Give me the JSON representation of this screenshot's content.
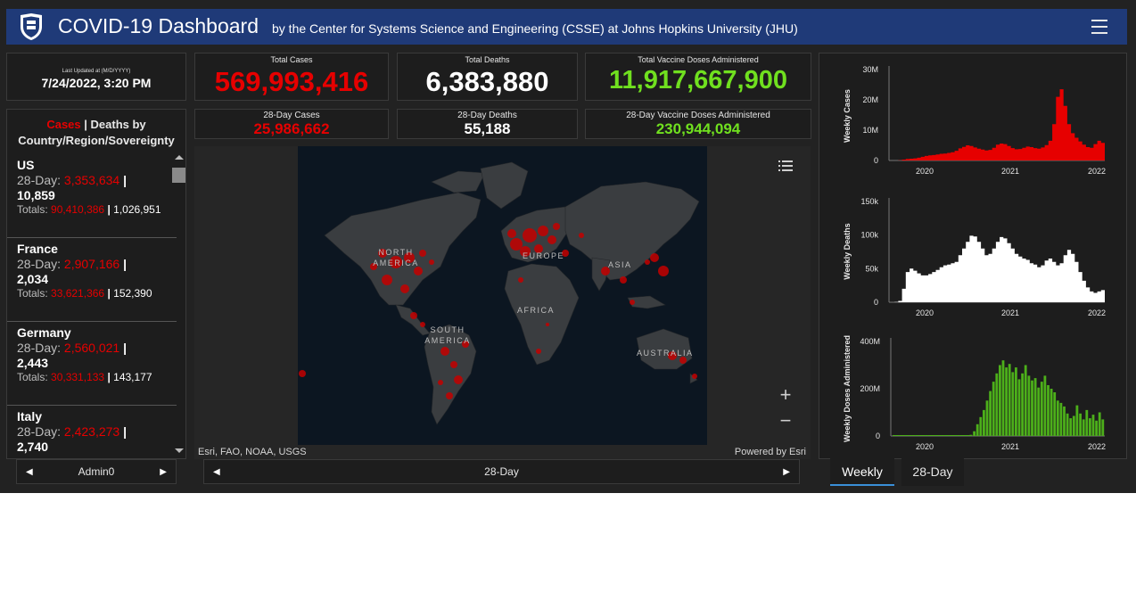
{
  "header": {
    "title": "COVID-19 Dashboard",
    "subtitle": "by the Center for Systems Science and Engineering (CSSE) at Johns Hopkins University (JHU)",
    "logo_icon": "jhu-shield-icon",
    "menu_icon": "hamburger-menu-icon"
  },
  "last_updated": {
    "label": "Last Updated at (M/D/YYYY)",
    "value": "7/24/2022, 3:20 PM"
  },
  "totals": {
    "cases_label": "Total Cases",
    "cases_value": "569,993,416",
    "deaths_label": "Total Deaths",
    "deaths_value": "6,383,880",
    "vaccine_label": "Total Vaccine Doses Administered",
    "vaccine_value": "11,917,667,900"
  },
  "day28": {
    "cases_label": "28-Day Cases",
    "cases_value": "25,986,662",
    "deaths_label": "28-Day Deaths",
    "deaths_value": "55,188",
    "vaccine_label": "28-Day Vaccine Doses Administered",
    "vaccine_value": "230,944,094"
  },
  "country_list": {
    "title_cases": "Cases",
    "title_sep": " | ",
    "title_rest": "Deaths by",
    "title_line2": "Country/Region/Sovereignty",
    "items": [
      {
        "name": "US",
        "d28_label": "28-Day:",
        "d28_cases": "3,353,634",
        "d28_deaths": "10,859",
        "tot_label": "Totals:",
        "tot_cases": "90,410,386",
        "tot_deaths": "1,026,951"
      },
      {
        "name": "France",
        "d28_label": "28-Day:",
        "d28_cases": "2,907,166",
        "d28_deaths": "2,034",
        "tot_label": "Totals:",
        "tot_cases": "33,621,366",
        "tot_deaths": "152,390"
      },
      {
        "name": "Germany",
        "d28_label": "28-Day:",
        "d28_cases": "2,560,021",
        "d28_deaths": "2,443",
        "tot_label": "Totals:",
        "tot_cases": "30,331,133",
        "tot_deaths": "143,177"
      },
      {
        "name": "Italy",
        "d28_label": "28-Day:",
        "d28_cases": "2,423,273",
        "d28_deaths": "2,740",
        "tot_label": "",
        "tot_cases": "",
        "tot_deaths": ""
      }
    ]
  },
  "map": {
    "labels": [
      "NORTH AMERICA",
      "EUROPE",
      "ASIA",
      "AFRICA",
      "SOUTH AMERICA",
      "AUSTRALIA"
    ],
    "attribution": "Esri, FAO, NOAA, USGS",
    "powered": "Powered by Esri",
    "legend_icon": "legend-list-icon",
    "zoom_in": "+",
    "zoom_out": "−"
  },
  "pagers": {
    "left_label": "Admin0",
    "center_label": "28-Day"
  },
  "tabs": {
    "weekly": "Weekly",
    "day28": "28-Day"
  },
  "chart_data": [
    {
      "type": "area",
      "ylabel": "Weekly Cases",
      "yticks": [
        "0",
        "10M",
        "20M",
        "30M"
      ],
      "ylim": [
        0,
        30000000
      ],
      "xticks": [
        "2020",
        "2021",
        "2022"
      ],
      "color": "#e60000",
      "series": [
        {
          "values": [
            0,
            0.01,
            0.05,
            0.3,
            0.5,
            0.6,
            0.7,
            0.9,
            1.2,
            1.5,
            1.7,
            1.8,
            2.0,
            2.2,
            2.3,
            2.5,
            2.7,
            3.2,
            4.0,
            4.5,
            5.0,
            4.8,
            4.3,
            3.9,
            3.6,
            3.3,
            3.5,
            4.2,
            5.2,
            5.6,
            5.4,
            4.8,
            4.1,
            3.7,
            3.8,
            4.2,
            4.6,
            4.4,
            4.1,
            3.9,
            4.3,
            5.1,
            6.5,
            12,
            21,
            23.5,
            18,
            12,
            9,
            7.5,
            6.3,
            5.2,
            4.4,
            4.2,
            5.4,
            6.5,
            5.8
          ]
        }
      ]
    },
    {
      "type": "area",
      "ylabel": "Weekly Deaths",
      "yticks": [
        "0",
        "50k",
        "100k",
        "150k"
      ],
      "ylim": [
        0,
        150000
      ],
      "xticks": [
        "2020",
        "2021",
        "2022"
      ],
      "color": "#ffffff",
      "series": [
        {
          "values": [
            0,
            200,
            2000,
            20000,
            45000,
            50000,
            47000,
            43000,
            40000,
            40000,
            42000,
            45000,
            48000,
            52000,
            55000,
            56000,
            58000,
            60000,
            70000,
            80000,
            90000,
            99000,
            98000,
            90000,
            80000,
            70000,
            72000,
            80000,
            90000,
            97000,
            95000,
            88000,
            80000,
            72000,
            68000,
            65000,
            63000,
            58000,
            56000,
            52000,
            55000,
            62000,
            65000,
            60000,
            55000,
            58000,
            70000,
            78000,
            72000,
            60000,
            45000,
            32000,
            22000,
            16000,
            14000,
            16000,
            18000
          ]
        }
      ]
    },
    {
      "type": "bar",
      "ylabel": "Weekly Doses Administered",
      "yticks": [
        "0",
        "200M",
        "400M"
      ],
      "ylim": [
        0,
        400000000
      ],
      "xticks": [
        "2020",
        "2021",
        "2022"
      ],
      "color": "#4caf1a",
      "series": [
        {
          "values": [
            0,
            0,
            0,
            0,
            0,
            0,
            0,
            0,
            0,
            0,
            0,
            0,
            0,
            0,
            0,
            0,
            0,
            0,
            0,
            0,
            0,
            0,
            0,
            0,
            5,
            20,
            50,
            80,
            110,
            150,
            190,
            230,
            265,
            300,
            320,
            290,
            305,
            270,
            290,
            240,
            265,
            300,
            255,
            235,
            245,
            205,
            230,
            255,
            215,
            200,
            185,
            150,
            140,
            125,
            95,
            75,
            85,
            130,
            95,
            70,
            110,
            75,
            90,
            65,
            100,
            70
          ]
        }
      ]
    }
  ]
}
